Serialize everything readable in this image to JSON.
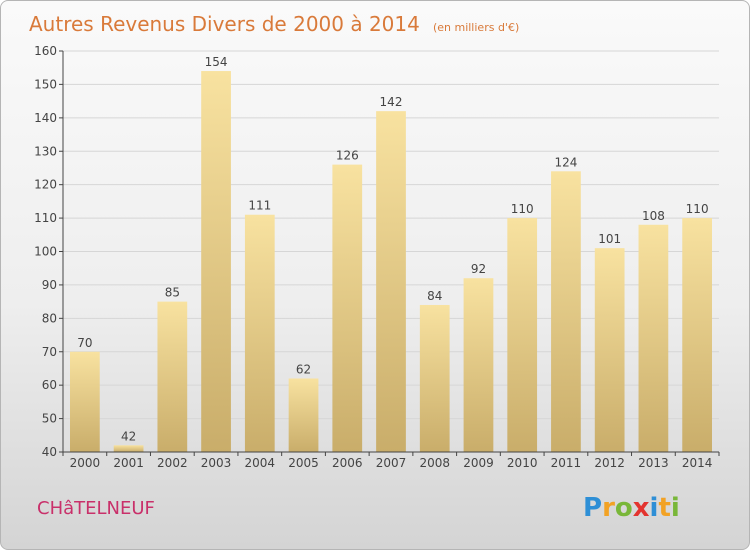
{
  "header": {
    "title": "Autres Revenus Divers de 2000 à 2014",
    "subtitle": "(en milliers d'€)"
  },
  "footer": {
    "commune": "CHâTELNEUF",
    "logo_text": "Proxiti"
  },
  "colors": {
    "title": "#d97a3a",
    "commune": "#c9306a",
    "bar_top": "#f8e2a0",
    "bar_bottom": "#c9ad6a"
  },
  "chart_data": {
    "type": "bar",
    "categories": [
      "2000",
      "2001",
      "2002",
      "2003",
      "2004",
      "2005",
      "2006",
      "2007",
      "2008",
      "2009",
      "2010",
      "2011",
      "2012",
      "2013",
      "2014"
    ],
    "values": [
      70,
      42,
      85,
      154,
      111,
      62,
      126,
      142,
      84,
      92,
      110,
      124,
      101,
      108,
      110
    ],
    "data_labels": [
      "70",
      "42",
      "85",
      "154",
      "111",
      "62",
      "126",
      "142",
      "84",
      "92",
      "110",
      "124",
      "101",
      "108",
      "110"
    ],
    "y_ticks": [
      40,
      50,
      60,
      70,
      80,
      90,
      100,
      110,
      120,
      130,
      140,
      150,
      160
    ],
    "ylim": [
      40,
      160
    ],
    "grid": true
  }
}
